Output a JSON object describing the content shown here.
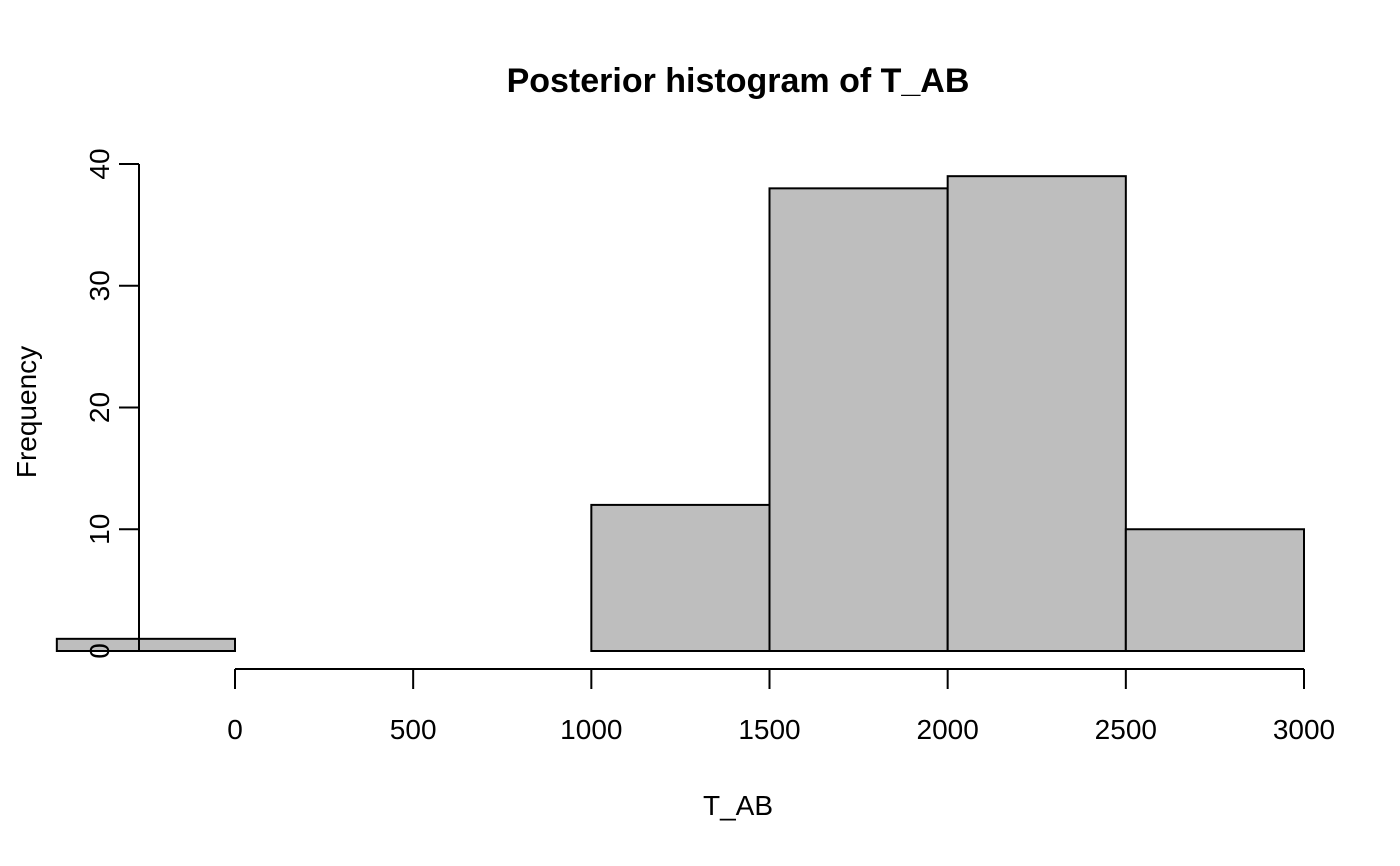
{
  "chart_data": {
    "type": "histogram",
    "title": "Posterior histogram of T_AB",
    "xlabel": "T_AB",
    "ylabel": "Frequency",
    "bins": [
      {
        "from": -500,
        "to": 0,
        "count": 1
      },
      {
        "from": 0,
        "to": 500,
        "count": 0
      },
      {
        "from": 500,
        "to": 1000,
        "count": 0
      },
      {
        "from": 1000,
        "to": 1500,
        "count": 12
      },
      {
        "from": 1500,
        "to": 2000,
        "count": 38
      },
      {
        "from": 2000,
        "to": 2500,
        "count": 39
      },
      {
        "from": 2500,
        "to": 3000,
        "count": 10
      }
    ],
    "x_ticks": [
      0,
      500,
      1000,
      1500,
      2000,
      2500,
      3000
    ],
    "x_tick_labels": [
      "0",
      "500",
      "1000",
      "1500",
      "2000",
      "2500",
      "3000"
    ],
    "y_ticks": [
      0,
      10,
      20,
      30,
      40
    ],
    "y_tick_labels": [
      "0",
      "10",
      "20",
      "30",
      "40"
    ],
    "xlim": [
      -500,
      3000
    ],
    "ylim": [
      0,
      40
    ],
    "bar_fill": "#bebebe",
    "bar_stroke": "#000000",
    "grid": false,
    "legend": "none"
  }
}
